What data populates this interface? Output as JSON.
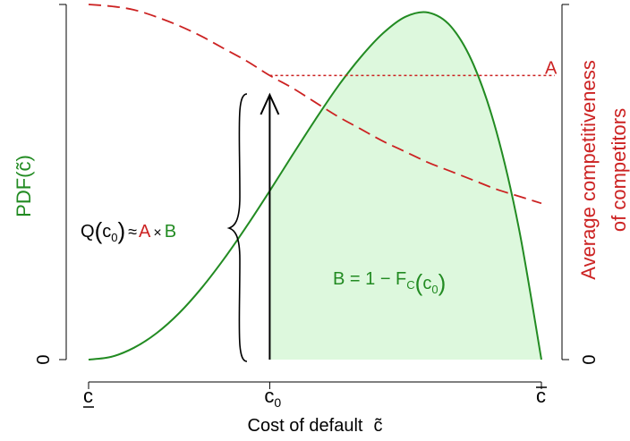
{
  "colors": {
    "green": "#228B22",
    "green_fill": "#DDF8DD",
    "red": "#CC2222",
    "black": "#000000"
  },
  "chart_data": {
    "type": "area",
    "xlabel": "Cost of default",
    "xlabel_symbol": "c̃",
    "y_left": {
      "label_prefix": "PDF(",
      "label_symbol": "c̃",
      "label_suffix": ")",
      "tick": "0",
      "color": "green"
    },
    "y_right": {
      "label_line1": "Average competitiveness",
      "label_line2": "of competitors",
      "tick": "0",
      "color": "red"
    },
    "x_ticks": [
      {
        "key": "lower",
        "base": "c",
        "decor": "underline",
        "sub": ""
      },
      {
        "key": "c0",
        "base": "c",
        "decor": "",
        "sub": "0"
      },
      {
        "key": "upper",
        "base": "c",
        "decor": "overline",
        "sub": ""
      }
    ],
    "xlim": [
      0,
      1
    ],
    "c0": 0.4,
    "ylim_left": [
      0,
      1
    ],
    "ylim_right": [
      0,
      1
    ],
    "series": [
      {
        "name": "PDF(c̃)",
        "style": "solid",
        "color": "green",
        "x": [
          0,
          0.05,
          0.1,
          0.15,
          0.2,
          0.25,
          0.3,
          0.35,
          0.4,
          0.45,
          0.5,
          0.55,
          0.6,
          0.65,
          0.7,
          0.75,
          0.8,
          0.85,
          0.9,
          0.95,
          1.0
        ],
        "y": [
          0,
          0.008,
          0.034,
          0.076,
          0.134,
          0.207,
          0.292,
          0.386,
          0.486,
          0.589,
          0.69,
          0.786,
          0.87,
          0.94,
          0.988,
          1.0,
          0.96,
          0.85,
          0.66,
          0.38,
          0
        ]
      },
      {
        "name": "Average competitiveness of competitors",
        "style": "dashed",
        "color": "red",
        "x": [
          0,
          0.05,
          0.1,
          0.15,
          0.2,
          0.25,
          0.3,
          0.35,
          0.4,
          0.45,
          0.5,
          0.55,
          0.6,
          0.65,
          0.7,
          0.75,
          0.8,
          0.85,
          0.9,
          0.95,
          1.0
        ],
        "y": [
          1.0,
          0.995,
          0.985,
          0.965,
          0.94,
          0.91,
          0.875,
          0.84,
          0.8,
          0.765,
          0.725,
          0.685,
          0.65,
          0.615,
          0.585,
          0.555,
          0.53,
          0.505,
          0.48,
          0.46,
          0.44
        ]
      }
    ],
    "annotations": {
      "A_label": "A",
      "B_label": "B",
      "B_eq_prefix": "B = 1 − F",
      "B_eq_sub": "C",
      "B_eq_arg": "c",
      "B_eq_arg_sub": "0",
      "Q_label": "Q",
      "Q_arg": "c",
      "Q_arg_sub": "0",
      "approx": "≈",
      "times": "×"
    }
  }
}
